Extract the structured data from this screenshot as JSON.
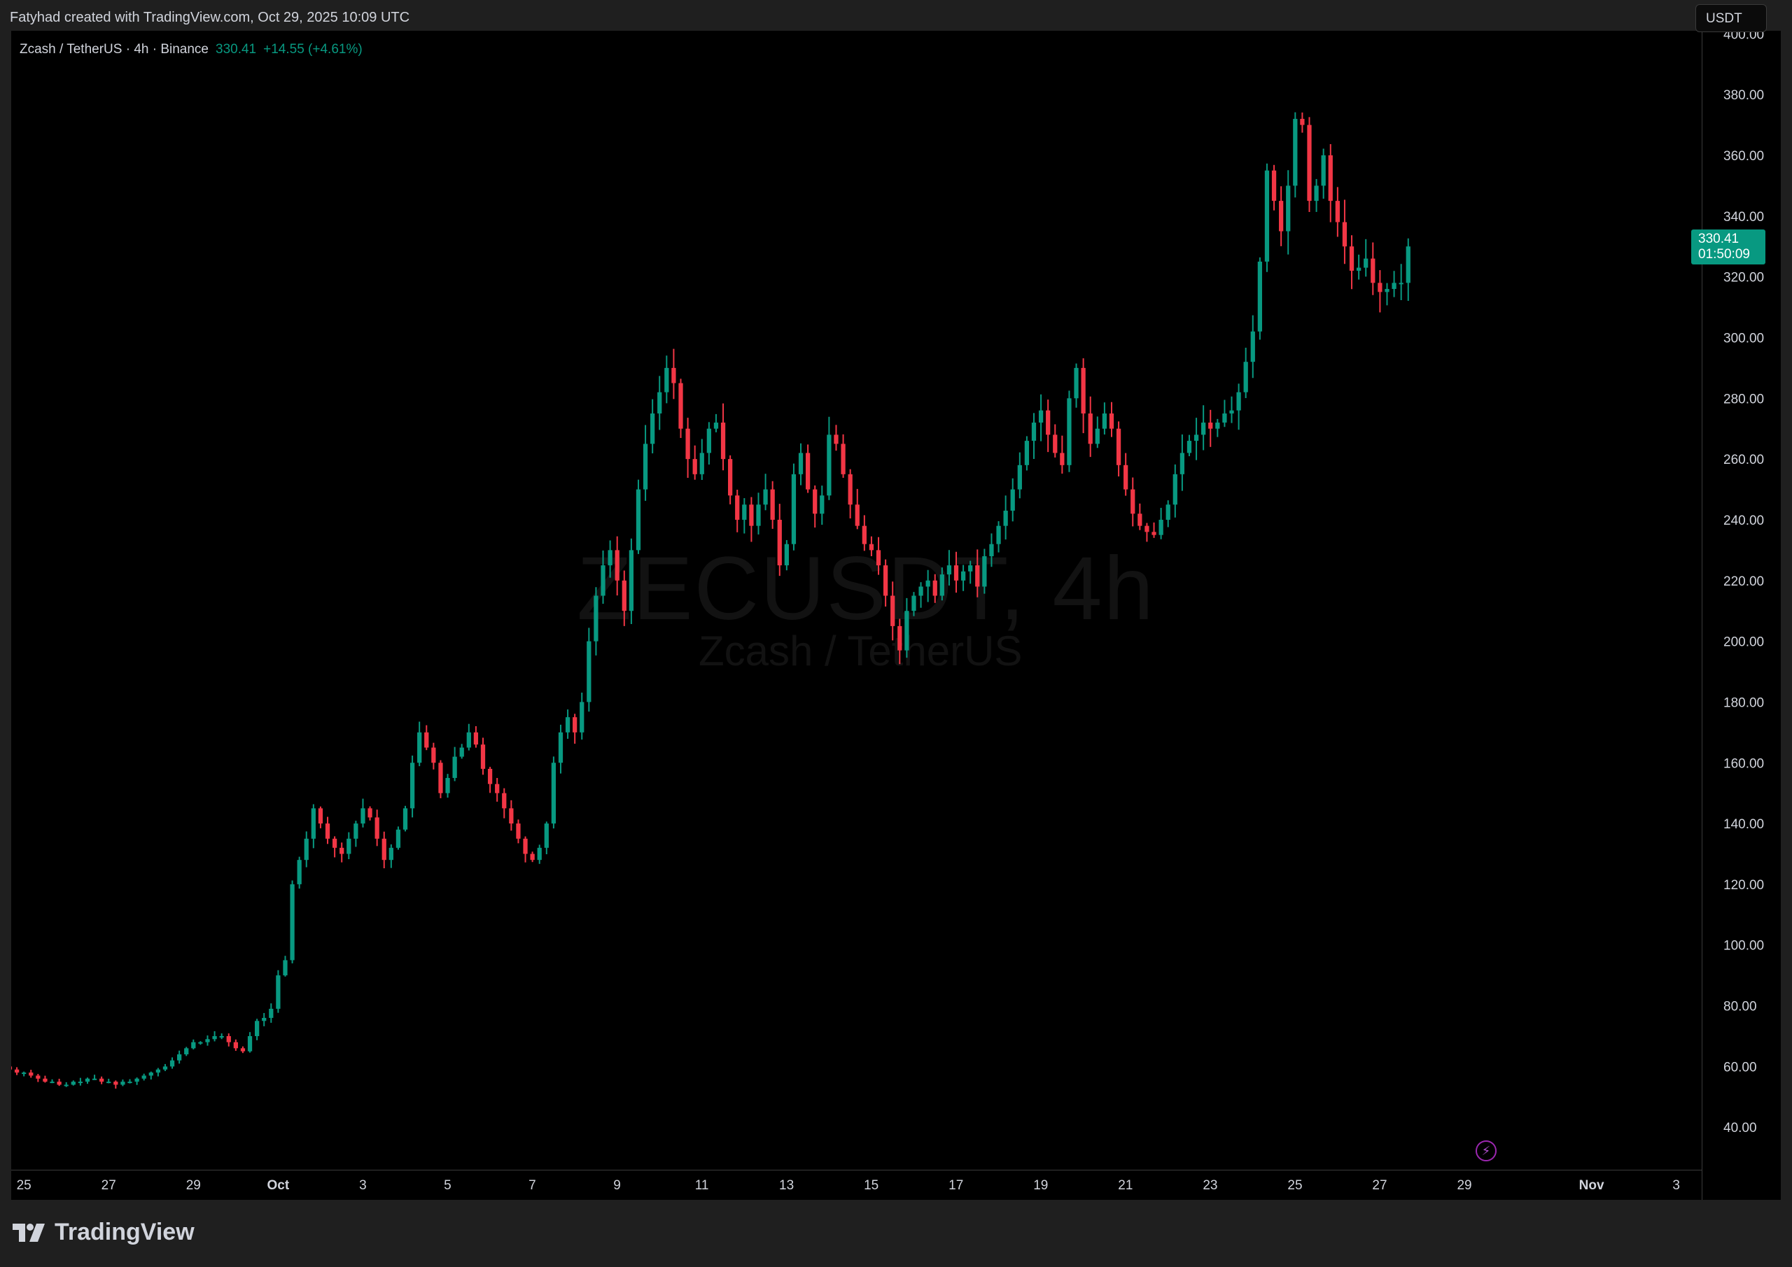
{
  "header": {
    "caption": "Fatyhad created with TradingView.com, Oct 29, 2025 10:09 UTC"
  },
  "legend": {
    "symbol_line": "Zcash / TetherUS · 4h · Binance",
    "last": "330.41",
    "change": "+14.55 (+4.61%)"
  },
  "axis": {
    "currency": "USDT",
    "last_price": "330.41",
    "countdown": "01:50:09"
  },
  "watermark": {
    "symbol": "ZECUSDT, 4h",
    "description": "Zcash / TetherUS"
  },
  "footer": {
    "brand": "TradingView"
  },
  "colors": {
    "up": "#089981",
    "down": "#f23645",
    "background": "#000000",
    "axis_text": "#d1d4dc"
  },
  "icons": {
    "brand_logo": "tradingview-logo-icon",
    "lightning": "lightning-icon"
  },
  "chart_data": {
    "type": "candlestick",
    "interval": "4h",
    "ylim": [
      26,
      401
    ],
    "yticks": [
      40,
      60,
      80,
      100,
      120,
      140,
      160,
      180,
      200,
      220,
      240,
      260,
      280,
      300,
      320,
      340,
      360,
      380,
      400
    ],
    "xlabels": [
      {
        "label": "25",
        "day": -6
      },
      {
        "label": "27",
        "day": -4
      },
      {
        "label": "29",
        "day": -2
      },
      {
        "label": "Oct",
        "day": 0
      },
      {
        "label": "3",
        "day": 2
      },
      {
        "label": "5",
        "day": 4
      },
      {
        "label": "7",
        "day": 6
      },
      {
        "label": "9",
        "day": 8
      },
      {
        "label": "11",
        "day": 10
      },
      {
        "label": "13",
        "day": 12
      },
      {
        "label": "15",
        "day": 14
      },
      {
        "label": "17",
        "day": 16
      },
      {
        "label": "19",
        "day": 18
      },
      {
        "label": "21",
        "day": 20
      },
      {
        "label": "23",
        "day": 22
      },
      {
        "label": "25",
        "day": 24
      },
      {
        "label": "27",
        "day": 26
      },
      {
        "label": "29",
        "day": 28
      },
      {
        "label": "Nov",
        "day": 31
      },
      {
        "label": "3",
        "day": 33
      }
    ],
    "xrange_days": [
      -6.3,
      33.6
    ],
    "first_bar_day": -6.5,
    "bar_interval_days": 0.1667,
    "closes": [
      60,
      59,
      58,
      58,
      57,
      56,
      55,
      55,
      54,
      54,
      55,
      55,
      56,
      56,
      55,
      55,
      54,
      55,
      55,
      56,
      57,
      58,
      59,
      60,
      62,
      64,
      66,
      68,
      68,
      69,
      70,
      70,
      68,
      66,
      65,
      70,
      75,
      76,
      79,
      90,
      95,
      120,
      128,
      135,
      145,
      140,
      135,
      132,
      130,
      135,
      140,
      145,
      142,
      135,
      128,
      132,
      138,
      145,
      160,
      170,
      165,
      160,
      150,
      155,
      162,
      165,
      170,
      166,
      158,
      153,
      150,
      145,
      140,
      135,
      130,
      128,
      132,
      140,
      160,
      170,
      175,
      170,
      180,
      200,
      215,
      225,
      230,
      220,
      210,
      230,
      250,
      265,
      275,
      282,
      290,
      285,
      270,
      260,
      255,
      262,
      270,
      272,
      260,
      248,
      240,
      245,
      238,
      245,
      250,
      240,
      225,
      232,
      255,
      262,
      250,
      242,
      248,
      268,
      265,
      255,
      245,
      238,
      232,
      230,
      225,
      215,
      205,
      197,
      210,
      215,
      218,
      220,
      215,
      222,
      225,
      220,
      223,
      225,
      218,
      228,
      232,
      238,
      243,
      250,
      258,
      266,
      272,
      276,
      268,
      262,
      258,
      280,
      290,
      275,
      265,
      270,
      275,
      270,
      258,
      250,
      242,
      238,
      236,
      235,
      240,
      245,
      255,
      262,
      266,
      268,
      272,
      270,
      272,
      275,
      276,
      282,
      292,
      302,
      325,
      355,
      345,
      335,
      350,
      372,
      370,
      345,
      350,
      360,
      345,
      338,
      330,
      322,
      323,
      326,
      318,
      315,
      316,
      318,
      318,
      330
    ]
  }
}
